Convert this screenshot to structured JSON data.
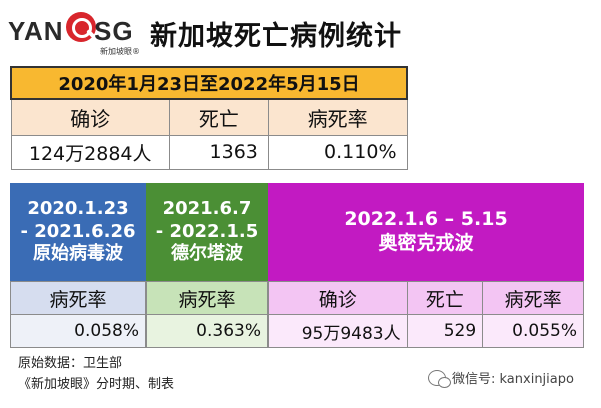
{
  "header": {
    "logo_left": "YAN",
    "logo_right": "SG",
    "logo_sub": "新加坡眼®",
    "title": "新加坡死亡病例统计"
  },
  "overall": {
    "date_range": "2020年1月23日至2022年5月15日",
    "headers": [
      "确诊",
      "死亡",
      "病死率"
    ],
    "values": [
      "124万2884人",
      "1363",
      "0.110%"
    ]
  },
  "periods": {
    "original": {
      "line1": "2020.1.23",
      "line2": "- 2021.6.26",
      "line3": "原始病毒波",
      "header": "病死率",
      "value": "0.058%"
    },
    "delta": {
      "line1": "2021.6.7",
      "line2": "- 2022.1.5",
      "line3": "德尔塔波",
      "header": "病死率",
      "value": "0.363%"
    },
    "omicron": {
      "line1": "2022.1.6 – 5.15",
      "line2": "奥密克戎波",
      "headers": [
        "确诊",
        "死亡",
        "病死率"
      ],
      "values": [
        "95万9483人",
        "529",
        "0.055%"
      ]
    }
  },
  "footer": {
    "source_line1": "原始数据：卫生部",
    "source_line2": "《新加坡眼》分时期、制表",
    "wechat": "微信号: kanxinjiapo"
  },
  "colors": {
    "orange": "#f8b830",
    "blue": "#3a6cb5",
    "green": "#4b8f35",
    "magenta": "#c21ac2"
  }
}
